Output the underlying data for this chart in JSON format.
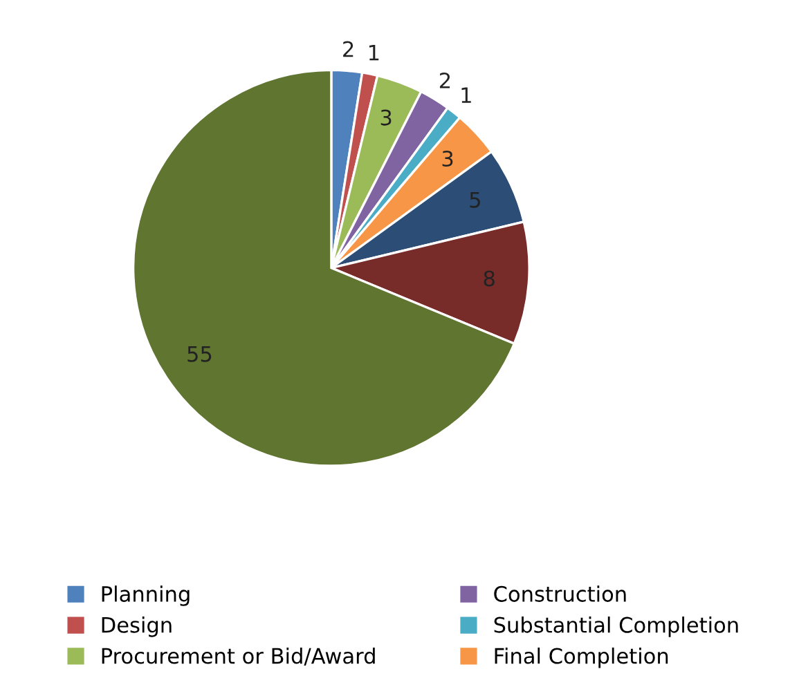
{
  "chart_data": {
    "type": "pie",
    "categories": [
      "Planning",
      "Design",
      "Procurement or Bid/Award",
      "Construction",
      "Substantial Completion",
      "Final Completion",
      null,
      null,
      null
    ],
    "values": [
      2,
      1,
      3,
      2,
      1,
      3,
      5,
      8,
      55
    ],
    "colors": [
      "#4f81bd",
      "#c0504d",
      "#9bbb59",
      "#8064a2",
      "#4bacc6",
      "#f79646",
      "#2c4d75",
      "#772c2a",
      "#5f7530"
    ],
    "data_labels": true,
    "legend": "bottom"
  }
}
